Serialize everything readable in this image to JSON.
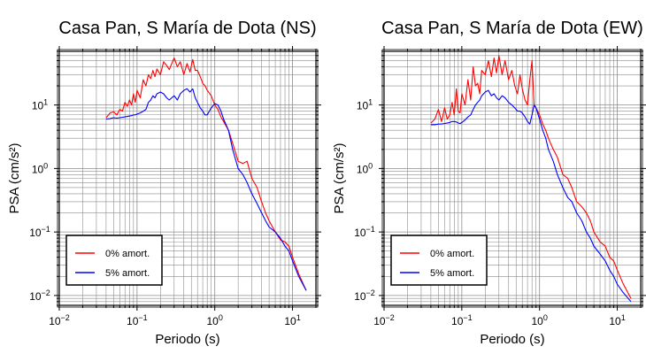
{
  "chart_data": [
    {
      "type": "line",
      "title": "Casa Pan, S María de Dota (NS)",
      "xlabel": "Periodo (s)",
      "ylabel": "PSA (cm/s²)",
      "xscale": "log",
      "yscale": "log",
      "xlim": [
        0.01,
        20
      ],
      "ylim": [
        0.007,
        70
      ],
      "xtick_labels": [
        {
          "value": 0.01,
          "base": "10",
          "exp": "−2"
        },
        {
          "value": 0.1,
          "base": "10",
          "exp": "−1"
        },
        {
          "value": 1,
          "base": "10",
          "exp": "0"
        },
        {
          "value": 10,
          "base": "10",
          "exp": "1"
        }
      ],
      "ytick_labels": [
        {
          "value": 0.01,
          "base": "10",
          "exp": "−2"
        },
        {
          "value": 0.1,
          "base": "10",
          "exp": "−1"
        },
        {
          "value": 1,
          "base": "10",
          "exp": "0"
        },
        {
          "value": 10,
          "base": "10",
          "exp": "1"
        }
      ],
      "grid": true,
      "legend_position": "bottom-left",
      "series": [
        {
          "name": "0% amort.",
          "color": "#ff0000",
          "x": [
            0.04,
            0.045,
            0.05,
            0.055,
            0.06,
            0.065,
            0.07,
            0.075,
            0.08,
            0.085,
            0.09,
            0.095,
            0.1,
            0.11,
            0.12,
            0.13,
            0.14,
            0.15,
            0.16,
            0.17,
            0.18,
            0.2,
            0.22,
            0.24,
            0.26,
            0.28,
            0.3,
            0.33,
            0.36,
            0.4,
            0.44,
            0.48,
            0.52,
            0.56,
            0.6,
            0.65,
            0.7,
            0.75,
            0.8,
            0.9,
            1.0,
            1.1,
            1.2,
            1.3,
            1.5,
            1.7,
            2.0,
            2.3,
            2.6,
            3.0,
            3.5,
            4.0,
            4.5,
            5.0,
            6.0,
            7.0,
            8.0,
            9.0,
            10,
            12,
            15
          ],
          "y": [
            6.3,
            7.5,
            7.8,
            7,
            8.5,
            8,
            11,
            9.5,
            12,
            10,
            15,
            11,
            17,
            13,
            25,
            20,
            30,
            26,
            35,
            28,
            37,
            30,
            48,
            42,
            36,
            45,
            55,
            40,
            48,
            30,
            45,
            33,
            52,
            35,
            35,
            28,
            22,
            20,
            17,
            14,
            10,
            8.5,
            6.5,
            5.5,
            4,
            2.5,
            1.3,
            1.2,
            1.3,
            0.7,
            0.5,
            0.3,
            0.2,
            0.15,
            0.1,
            0.075,
            0.07,
            0.06,
            0.04,
            0.022,
            0.012
          ]
        },
        {
          "name": "5% amort.",
          "color": "#0000ff",
          "x": [
            0.04,
            0.045,
            0.05,
            0.055,
            0.06,
            0.065,
            0.07,
            0.075,
            0.08,
            0.085,
            0.09,
            0.095,
            0.1,
            0.11,
            0.12,
            0.13,
            0.14,
            0.15,
            0.16,
            0.17,
            0.18,
            0.2,
            0.22,
            0.24,
            0.26,
            0.28,
            0.3,
            0.33,
            0.36,
            0.4,
            0.44,
            0.48,
            0.52,
            0.56,
            0.6,
            0.65,
            0.7,
            0.75,
            0.8,
            0.9,
            1.0,
            1.1,
            1.2,
            1.3,
            1.5,
            1.7,
            2.0,
            2.3,
            2.6,
            3.0,
            3.5,
            4.0,
            4.5,
            5.0,
            6.0,
            7.0,
            8.0,
            9.0,
            10,
            12,
            15
          ],
          "y": [
            6.0,
            6.1,
            6.3,
            6.2,
            6.3,
            6.4,
            6.5,
            6.6,
            6.7,
            6.8,
            7,
            7,
            7.2,
            7.5,
            8,
            8.5,
            11,
            12,
            14,
            13,
            15,
            16,
            15,
            13,
            12,
            13,
            14,
            12,
            15,
            17,
            18,
            16,
            18,
            13,
            11,
            9,
            8,
            7,
            7,
            9,
            10.5,
            10,
            8,
            6,
            4,
            2,
            1.0,
            0.8,
            0.6,
            0.4,
            0.28,
            0.2,
            0.15,
            0.12,
            0.1,
            0.08,
            0.06,
            0.05,
            0.035,
            0.02,
            0.012
          ]
        }
      ]
    },
    {
      "type": "line",
      "title": "Casa Pan, S María de Dota (EW)",
      "xlabel": "Periodo (s)",
      "ylabel": "PSA (cm/s²)",
      "xscale": "log",
      "yscale": "log",
      "xlim": [
        0.01,
        20
      ],
      "ylim": [
        0.007,
        70
      ],
      "xtick_labels": [
        {
          "value": 0.01,
          "base": "10",
          "exp": "−2"
        },
        {
          "value": 0.1,
          "base": "10",
          "exp": "−1"
        },
        {
          "value": 1,
          "base": "10",
          "exp": "0"
        },
        {
          "value": 10,
          "base": "10",
          "exp": "1"
        }
      ],
      "ytick_labels": [
        {
          "value": 0.01,
          "base": "10",
          "exp": "−2"
        },
        {
          "value": 0.1,
          "base": "10",
          "exp": "−1"
        },
        {
          "value": 1,
          "base": "10",
          "exp": "0"
        },
        {
          "value": 10,
          "base": "10",
          "exp": "1"
        }
      ],
      "grid": true,
      "legend_position": "bottom-left",
      "series": [
        {
          "name": "0% amort.",
          "color": "#ff0000",
          "x": [
            0.04,
            0.045,
            0.05,
            0.055,
            0.06,
            0.065,
            0.07,
            0.075,
            0.08,
            0.085,
            0.09,
            0.095,
            0.1,
            0.11,
            0.12,
            0.13,
            0.14,
            0.15,
            0.16,
            0.17,
            0.18,
            0.2,
            0.22,
            0.24,
            0.26,
            0.28,
            0.3,
            0.33,
            0.36,
            0.4,
            0.44,
            0.48,
            0.52,
            0.56,
            0.6,
            0.65,
            0.7,
            0.75,
            0.8,
            0.85,
            0.9,
            1.0,
            1.1,
            1.2,
            1.3,
            1.5,
            1.7,
            2.0,
            2.3,
            2.6,
            3.0,
            3.5,
            4.0,
            4.5,
            5.0,
            6.0,
            7.0,
            8.0,
            9.0,
            10,
            12,
            15
          ],
          "y": [
            5.2,
            6,
            8.5,
            5.5,
            9,
            6,
            7,
            11,
            7,
            18,
            8,
            7.5,
            15,
            10,
            25,
            12,
            40,
            20,
            22,
            15,
            35,
            30,
            50,
            28,
            55,
            32,
            60,
            30,
            50,
            25,
            35,
            20,
            15,
            30,
            18,
            12,
            10,
            25,
            50,
            10,
            9,
            7,
            5,
            4,
            3,
            2,
            1.5,
            0.8,
            0.7,
            0.5,
            0.3,
            0.25,
            0.2,
            0.15,
            0.1,
            0.07,
            0.06,
            0.04,
            0.035,
            0.025,
            0.015,
            0.009
          ]
        },
        {
          "name": "5% amort.",
          "color": "#0000ff",
          "x": [
            0.04,
            0.045,
            0.05,
            0.055,
            0.06,
            0.065,
            0.07,
            0.075,
            0.08,
            0.085,
            0.09,
            0.095,
            0.1,
            0.11,
            0.12,
            0.13,
            0.14,
            0.15,
            0.16,
            0.17,
            0.18,
            0.2,
            0.22,
            0.24,
            0.26,
            0.28,
            0.3,
            0.33,
            0.36,
            0.4,
            0.44,
            0.48,
            0.52,
            0.56,
            0.6,
            0.65,
            0.7,
            0.75,
            0.8,
            0.85,
            0.9,
            1.0,
            1.1,
            1.2,
            1.3,
            1.5,
            1.7,
            2.0,
            2.3,
            2.6,
            3.0,
            3.5,
            4.0,
            4.5,
            5.0,
            6.0,
            7.0,
            8.0,
            9.0,
            10,
            12,
            15
          ],
          "y": [
            4.9,
            4.9,
            5,
            5,
            5.1,
            5.2,
            5.3,
            5.5,
            5.5,
            5.4,
            5.2,
            5.1,
            5.3,
            5.8,
            6.5,
            7,
            8.5,
            10,
            11,
            12,
            14,
            16,
            17,
            14,
            15,
            13,
            12,
            14,
            13,
            11,
            10,
            9,
            8,
            8,
            7.5,
            6.5,
            5.5,
            5,
            7,
            10,
            9,
            6,
            4,
            3,
            2,
            1.3,
            0.8,
            0.5,
            0.35,
            0.3,
            0.2,
            0.15,
            0.1,
            0.08,
            0.06,
            0.045,
            0.035,
            0.025,
            0.02,
            0.015,
            0.011,
            0.008
          ]
        }
      ]
    }
  ]
}
